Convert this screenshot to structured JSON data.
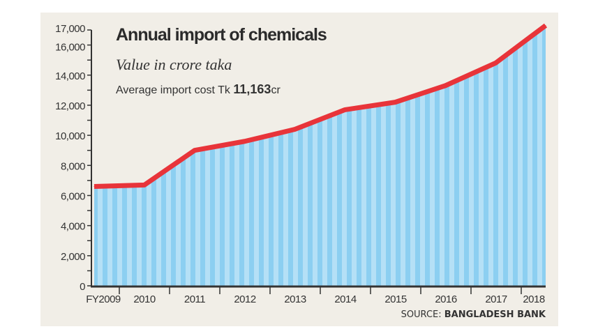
{
  "chart_data": {
    "type": "area",
    "title": "Annual import of chemicals",
    "subtitle": "Value in crore taka",
    "annotation": {
      "prefix": "Average import cost  Tk ",
      "value": "11,163",
      "suffix": "cr"
    },
    "categories": [
      "FY2009",
      "2010",
      "2011",
      "2012",
      "2013",
      "2014",
      "2015",
      "2016",
      "2017",
      "2018"
    ],
    "values": [
      6600,
      6700,
      9000,
      9600,
      10400,
      11700,
      12200,
      13300,
      14800,
      17300
    ],
    "ylim": [
      0,
      17000
    ],
    "yticks": [
      0,
      2000,
      4000,
      6000,
      8000,
      10000,
      12000,
      14000,
      16000,
      17000
    ],
    "ytick_labels": [
      "0",
      "2,000",
      "4,000",
      "6,000",
      "8,000",
      "10,000",
      "12,000",
      "14,000",
      "16,000",
      "17,000"
    ],
    "xlabel": "",
    "ylabel": "",
    "grid": false,
    "source": {
      "prefix": "SOURCE: ",
      "name": "BANGLADESH BANK"
    },
    "colors": {
      "line": "#e8343a",
      "fill_light": "#b5e0f6",
      "fill_dark": "#8ccff1",
      "background": "#f1eee7",
      "axis": "#333333"
    }
  }
}
